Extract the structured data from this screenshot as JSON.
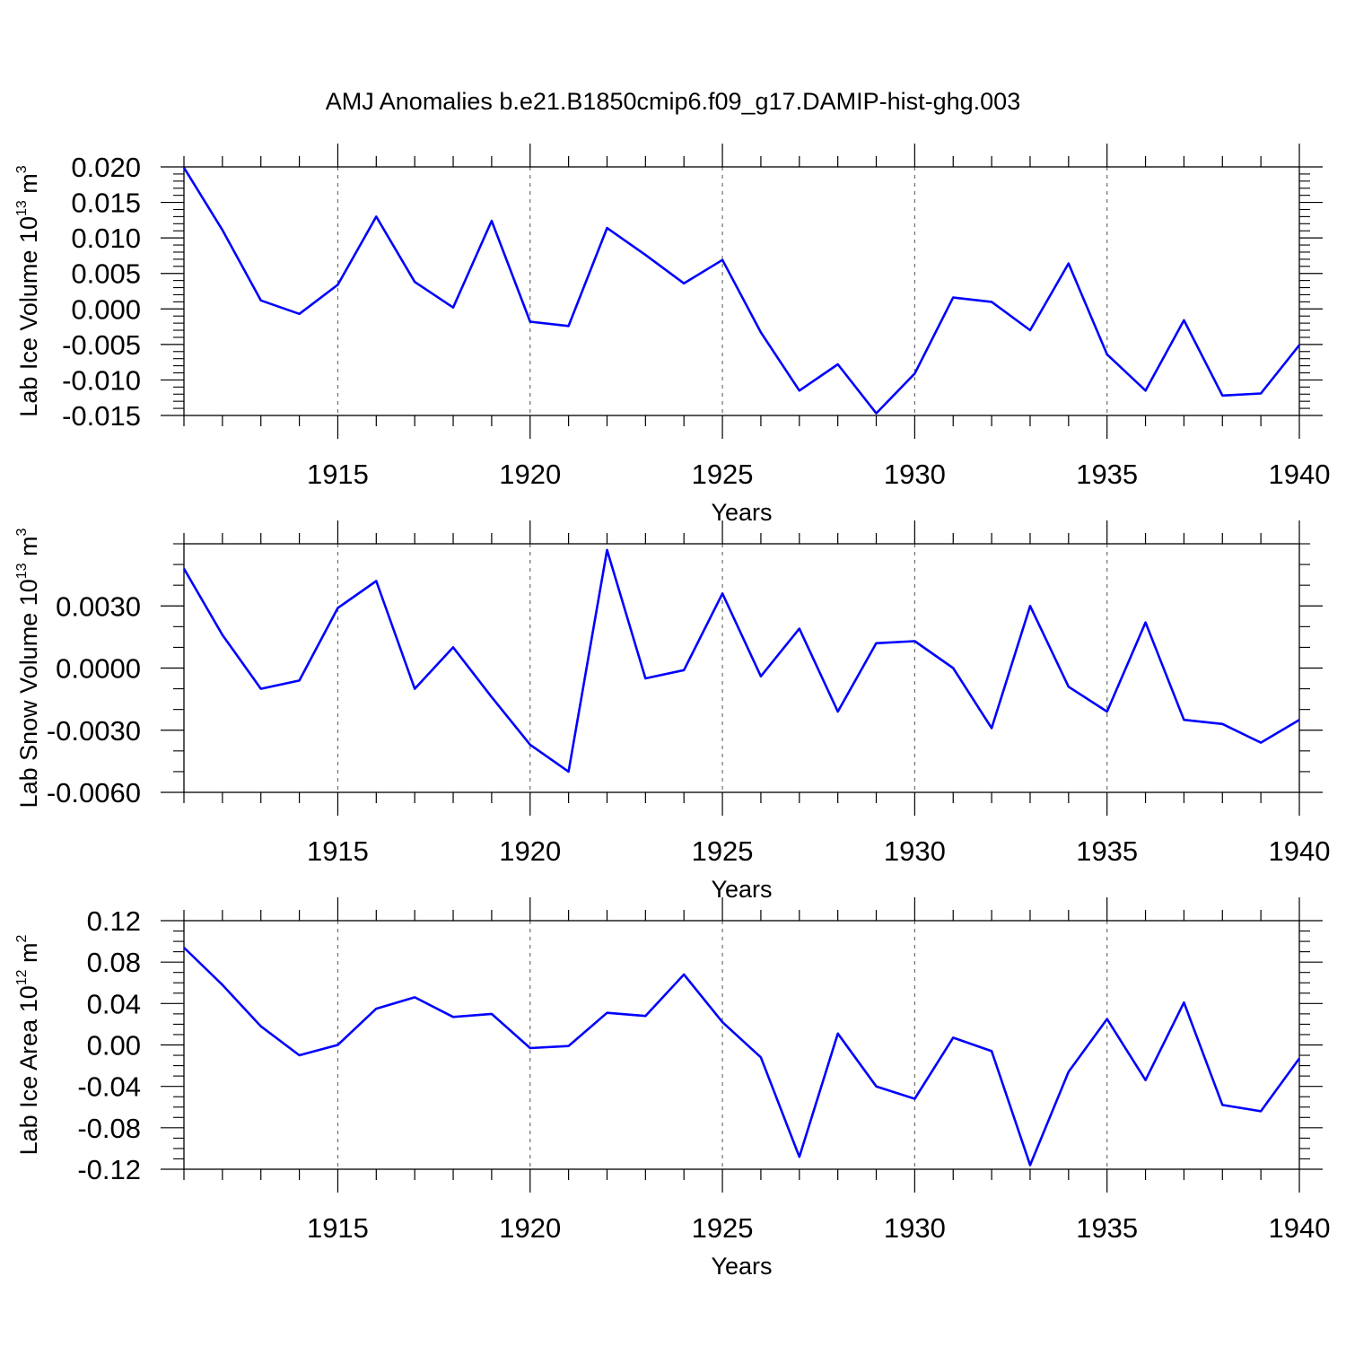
{
  "title": "AMJ Anomalies b.e21.B1850cmip6.f09_g17.DAMIP-hist-ghg.003",
  "chart_data": [
    {
      "type": "line",
      "ylabel": {
        "text": "Lab Ice Volume 10",
        "sup": "13",
        "unit": " m",
        "unit_sup": "3"
      },
      "xlabel": "Years",
      "xlim": [
        1911,
        1940
      ],
      "ylim": [
        -0.015,
        0.02
      ],
      "xticks": [
        {
          "v": 1915,
          "label": "1915"
        },
        {
          "v": 1920,
          "label": "1920"
        },
        {
          "v": 1925,
          "label": "1925"
        },
        {
          "v": 1930,
          "label": "1930"
        },
        {
          "v": 1935,
          "label": "1935"
        },
        {
          "v": 1940,
          "label": "1940"
        }
      ],
      "yticks": [
        {
          "v": 0.02,
          "label": "0.020"
        },
        {
          "v": 0.015,
          "label": "0.015"
        },
        {
          "v": 0.01,
          "label": "0.010"
        },
        {
          "v": 0.005,
          "label": "0.005"
        },
        {
          "v": 0.0,
          "label": "0.000"
        },
        {
          "v": -0.005,
          "label": "-0.005"
        },
        {
          "v": -0.01,
          "label": "-0.010"
        },
        {
          "v": -0.015,
          "label": "-0.015"
        }
      ],
      "minor_y_step": 0.001,
      "grid_x": true,
      "series": [
        {
          "color": "#0000ff",
          "x": [
            1911,
            1912,
            1913,
            1914,
            1915,
            1916,
            1917,
            1918,
            1919,
            1920,
            1921,
            1922,
            1923,
            1924,
            1925,
            1926,
            1927,
            1928,
            1929,
            1930,
            1931,
            1932,
            1933,
            1934,
            1935,
            1936,
            1937,
            1938,
            1939,
            1940
          ],
          "y": [
            0.0199,
            0.0111,
            0.0012,
            -0.0007,
            0.0034,
            0.013,
            0.0038,
            0.0002,
            0.0124,
            -0.0018,
            -0.0024,
            0.0114,
            0.0076,
            0.0036,
            0.0069,
            -0.0033,
            -0.0115,
            -0.0078,
            -0.0147,
            -0.0091,
            0.0016,
            0.001,
            -0.003,
            0.0064,
            -0.0064,
            -0.0115,
            -0.0016,
            -0.0122,
            -0.0119,
            -0.0051
          ]
        }
      ]
    },
    {
      "type": "line",
      "ylabel": {
        "text": "Lab Snow Volume 10",
        "sup": "13",
        "unit": " m",
        "unit_sup": "3"
      },
      "xlabel": "Years",
      "xlim": [
        1911,
        1940
      ],
      "ylim": [
        -0.006,
        0.006
      ],
      "xticks": [
        {
          "v": 1915,
          "label": "1915"
        },
        {
          "v": 1920,
          "label": "1920"
        },
        {
          "v": 1925,
          "label": "1925"
        },
        {
          "v": 1930,
          "label": "1930"
        },
        {
          "v": 1935,
          "label": "1935"
        },
        {
          "v": 1940,
          "label": "1940"
        }
      ],
      "yticks": [
        {
          "v": 0.003,
          "label": "0.0030"
        },
        {
          "v": 0.0,
          "label": "0.0000"
        },
        {
          "v": -0.003,
          "label": "-0.0030"
        },
        {
          "v": -0.006,
          "label": "-0.0060"
        }
      ],
      "minor_y_step": 0.001,
      "grid_x": true,
      "series": [
        {
          "color": "#0000ff",
          "x": [
            1911,
            1912,
            1913,
            1914,
            1915,
            1916,
            1917,
            1918,
            1919,
            1920,
            1921,
            1922,
            1923,
            1924,
            1925,
            1926,
            1927,
            1928,
            1929,
            1930,
            1931,
            1932,
            1933,
            1934,
            1935,
            1936,
            1937,
            1938,
            1939,
            1940
          ],
          "y": [
            0.0048,
            0.0016,
            -0.001,
            -0.0006,
            0.0029,
            0.0042,
            -0.001,
            0.001,
            -0.0014,
            -0.0037,
            -0.005,
            0.0057,
            -0.0005,
            -0.0001,
            0.0036,
            -0.0004,
            0.0019,
            -0.0021,
            0.0012,
            0.0013,
            0.0,
            -0.0029,
            0.003,
            -0.0009,
            -0.0021,
            0.0022,
            -0.0025,
            -0.0027,
            -0.0036,
            -0.0025
          ]
        }
      ]
    },
    {
      "type": "line",
      "ylabel": {
        "text": "Lab Ice Area 10",
        "sup": "12",
        "unit": " m",
        "unit_sup": "2"
      },
      "xlabel": "Years",
      "xlim": [
        1911,
        1940
      ],
      "ylim": [
        -0.12,
        0.12
      ],
      "xticks": [
        {
          "v": 1915,
          "label": "1915"
        },
        {
          "v": 1920,
          "label": "1920"
        },
        {
          "v": 1925,
          "label": "1925"
        },
        {
          "v": 1930,
          "label": "1930"
        },
        {
          "v": 1935,
          "label": "1935"
        },
        {
          "v": 1940,
          "label": "1940"
        }
      ],
      "yticks": [
        {
          "v": 0.12,
          "label": "0.12"
        },
        {
          "v": 0.08,
          "label": "0.08"
        },
        {
          "v": 0.04,
          "label": "0.04"
        },
        {
          "v": 0.0,
          "label": "0.00"
        },
        {
          "v": -0.04,
          "label": "-0.04"
        },
        {
          "v": -0.08,
          "label": "-0.08"
        },
        {
          "v": -0.12,
          "label": "-0.12"
        }
      ],
      "minor_y_step": 0.01,
      "grid_x": true,
      "series": [
        {
          "color": "#0000ff",
          "x": [
            1911,
            1912,
            1913,
            1914,
            1915,
            1916,
            1917,
            1918,
            1919,
            1920,
            1921,
            1922,
            1923,
            1924,
            1925,
            1926,
            1927,
            1928,
            1929,
            1930,
            1931,
            1932,
            1933,
            1934,
            1935,
            1936,
            1937,
            1938,
            1939,
            1940
          ],
          "y": [
            0.094,
            0.058,
            0.018,
            -0.01,
            0.0,
            0.035,
            0.046,
            0.027,
            0.03,
            -0.003,
            -0.001,
            0.031,
            0.028,
            0.068,
            0.022,
            -0.012,
            -0.108,
            0.011,
            -0.04,
            -0.052,
            0.007,
            -0.006,
            -0.116,
            -0.026,
            0.025,
            -0.034,
            0.041,
            -0.058,
            -0.064,
            -0.013
          ]
        }
      ]
    }
  ]
}
